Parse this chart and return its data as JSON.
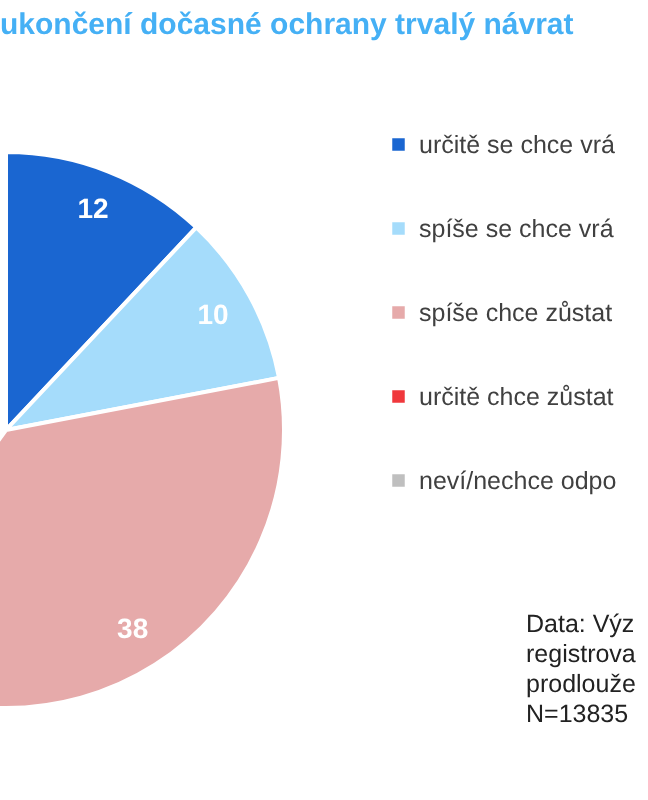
{
  "chart_data": {
    "type": "pie",
    "title": "ukončení dočasné ochrany trvalý návrat",
    "categories": [
      "určitě se chce vrá",
      "spíše se chce vrá",
      "spíše chce zůstat",
      "určitě chce zůstat",
      "neví/nechce odpo"
    ],
    "values": [
      12,
      10,
      38,
      null,
      null
    ],
    "colors": [
      "#1a66d1",
      "#a5dcfb",
      "#e6aaaa",
      "#f0383c",
      "#bfbfbf"
    ],
    "data_labels": true,
    "legend": "right",
    "annotations": [
      "Data: Výz",
      "registrova",
      "prodlouže",
      "N=13835"
    ]
  }
}
